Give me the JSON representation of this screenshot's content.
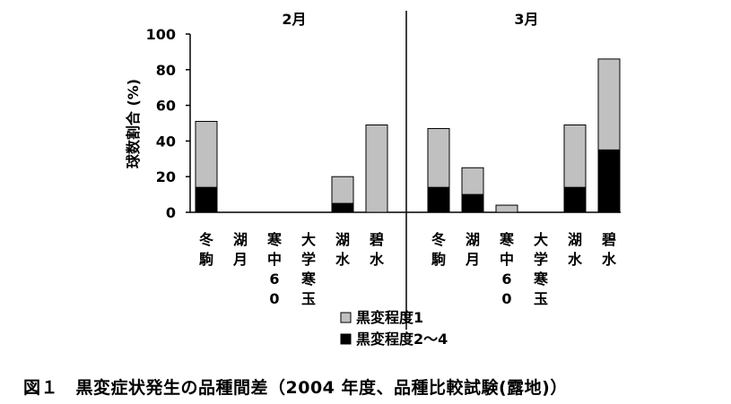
{
  "chart_data": {
    "type": "bar",
    "stacked": true,
    "ylabel": "球数割合 (%)",
    "ylim": [
      0,
      100
    ],
    "yticks": [
      0,
      20,
      40,
      60,
      80,
      100
    ],
    "groups": [
      {
        "label": "2月",
        "categories": [
          "冬駒",
          "湖月",
          "寒中60",
          "大学寒玉",
          "湖水",
          "碧水"
        ],
        "series": [
          {
            "name": "黒変程度2～4",
            "values": [
              14,
              0,
              0,
              0,
              5,
              0
            ]
          },
          {
            "name": "黒変程度1",
            "values": [
              37,
              0,
              0,
              0,
              15,
              49
            ]
          }
        ]
      },
      {
        "label": "3月",
        "categories": [
          "冬駒",
          "湖月",
          "寒中60",
          "大学寒玉",
          "湖水",
          "碧水"
        ],
        "series": [
          {
            "name": "黒変程度2～4",
            "values": [
              14,
              10,
              0,
              0,
              14,
              35
            ]
          },
          {
            "name": "黒変程度1",
            "values": [
              33,
              15,
              4,
              0,
              35,
              51
            ]
          }
        ]
      }
    ],
    "legend": [
      {
        "label": "黒変程度1",
        "color": "#c0c0c0"
      },
      {
        "label": "黒変程度2～4",
        "color": "#000000"
      }
    ],
    "legend_position": "bottom",
    "colors": {
      "severe": "#000000",
      "mild": "#c0c0c0"
    }
  },
  "caption": "図１　黒変症状発生の品種間差（2004 年度、品種比較試験(露地)）"
}
